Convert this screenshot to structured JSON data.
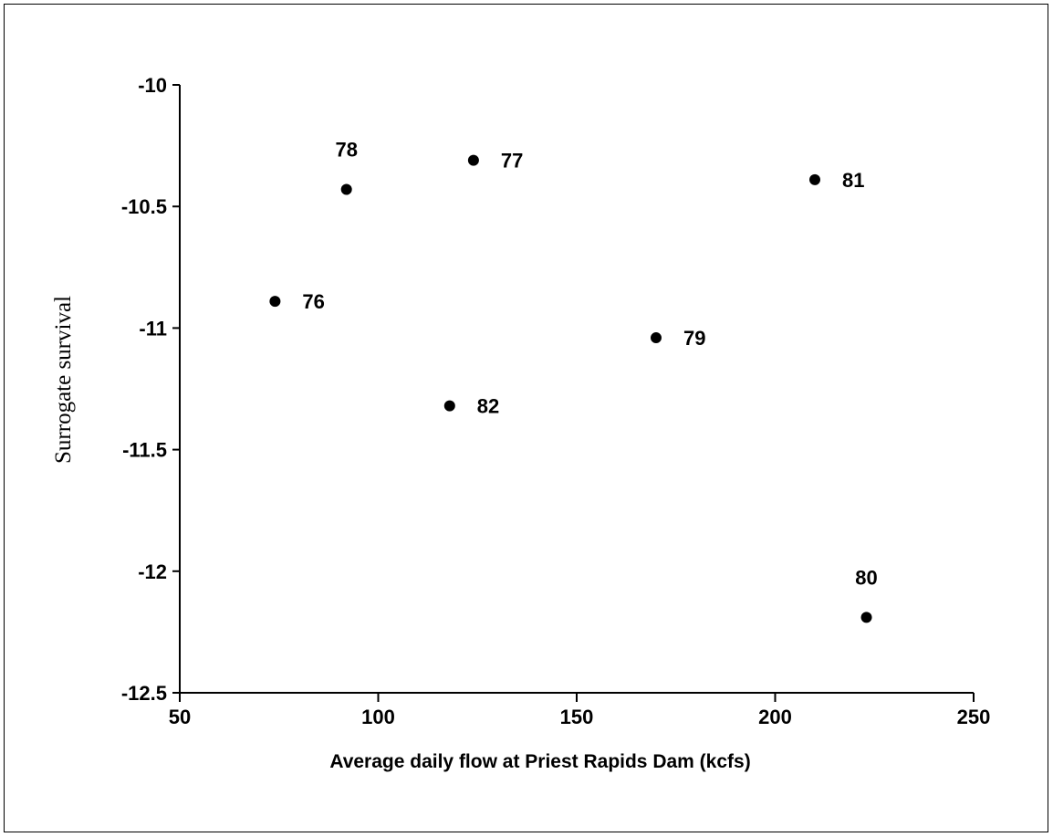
{
  "chart_data": {
    "type": "scatter",
    "title": "",
    "xlabel": "Average daily flow at Priest Rapids Dam (kcfs)",
    "ylabel": "Surrogate survival",
    "xlim": [
      50,
      250
    ],
    "ylim": [
      -12.5,
      -10
    ],
    "x_ticks": [
      50,
      100,
      150,
      200,
      250
    ],
    "y_ticks": [
      -10,
      -10.5,
      -11,
      -11.5,
      -12,
      -12.5
    ],
    "x_tick_labels": [
      "50",
      "100",
      "150",
      "200",
      "250"
    ],
    "y_tick_labels": [
      "-10",
      "-10.5",
      "-11",
      "-11.5",
      "-12",
      "-12.5"
    ],
    "grid": false,
    "legend": "none",
    "point_color": "#000000",
    "points": [
      {
        "label": "76",
        "x": 74,
        "y": -10.89,
        "label_pos": "right"
      },
      {
        "label": "77",
        "x": 124,
        "y": -10.31,
        "label_pos": "right"
      },
      {
        "label": "78",
        "x": 92,
        "y": -10.43,
        "label_pos": "above"
      },
      {
        "label": "79",
        "x": 170,
        "y": -11.04,
        "label_pos": "right"
      },
      {
        "label": "80",
        "x": 223,
        "y": -12.19,
        "label_pos": "above"
      },
      {
        "label": "81",
        "x": 210,
        "y": -10.39,
        "label_pos": "right"
      },
      {
        "label": "82",
        "x": 118,
        "y": -11.32,
        "label_pos": "right"
      }
    ]
  }
}
